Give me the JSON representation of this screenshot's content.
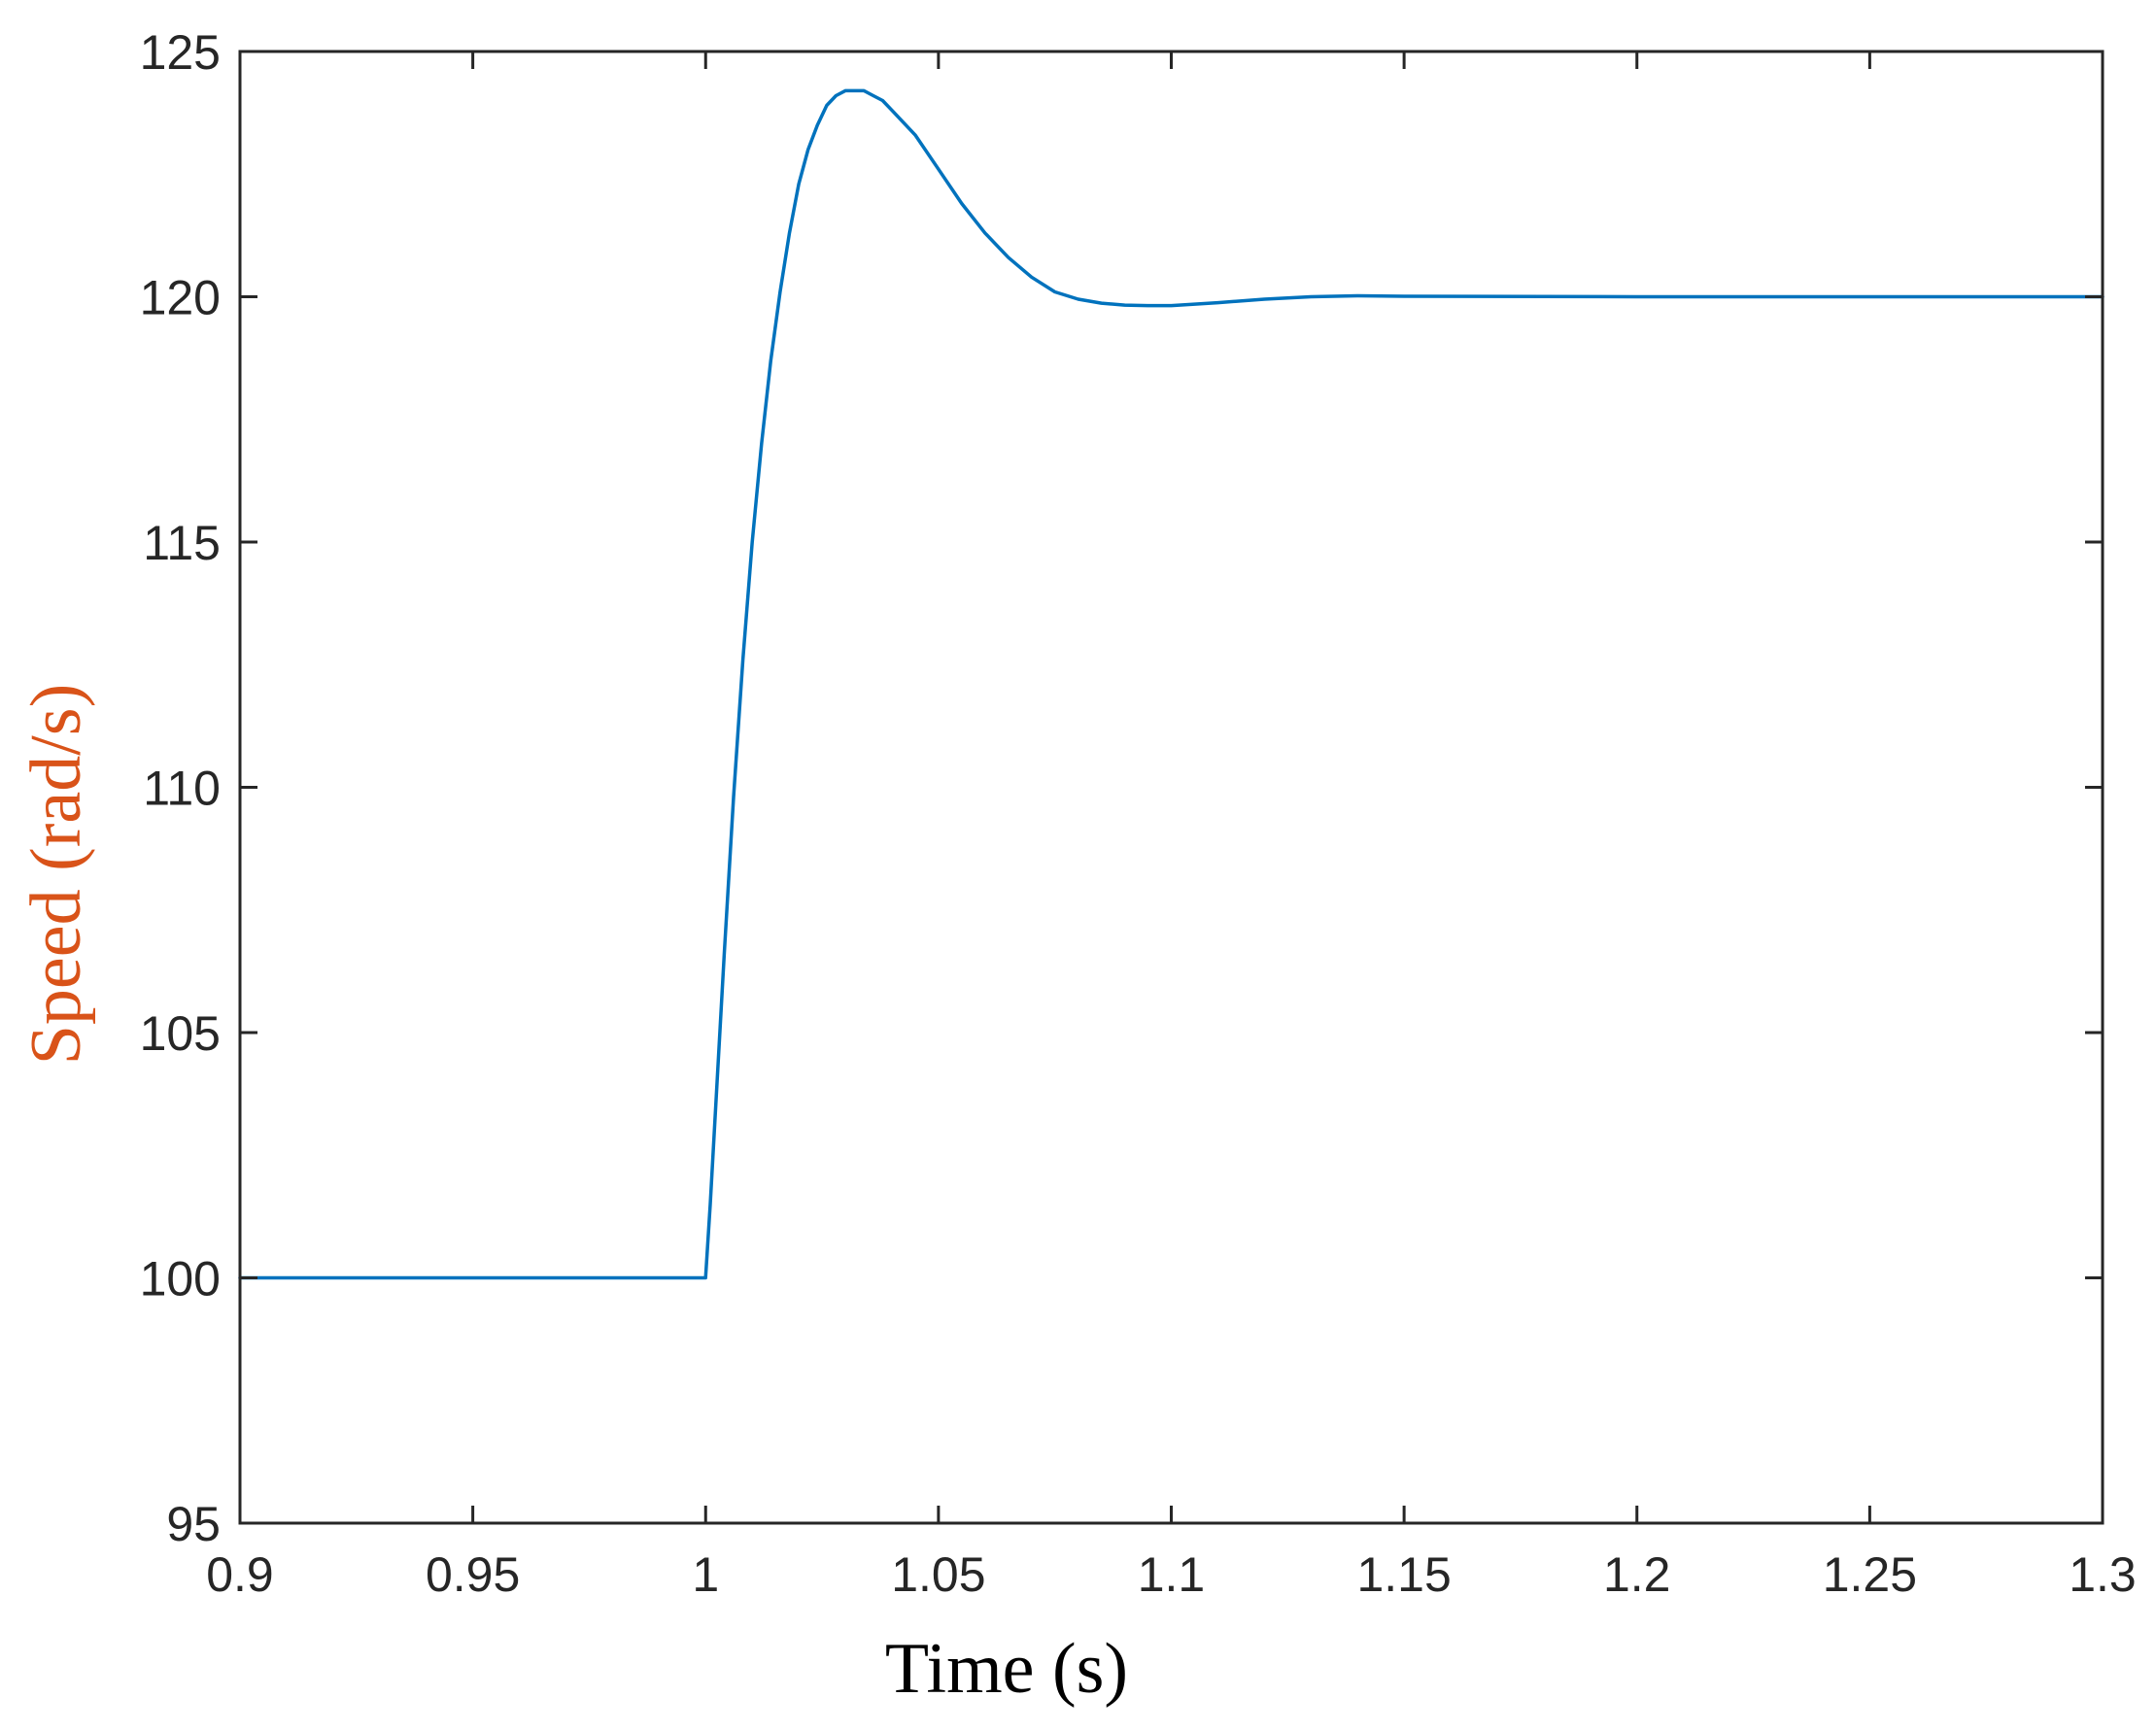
{
  "chart_data": {
    "type": "line",
    "title": "",
    "xlabel": "Time (s)",
    "ylabel": "Speed (rad/s)",
    "xlim": [
      0.9,
      1.3
    ],
    "ylim": [
      95,
      125
    ],
    "xticks": [
      0.9,
      0.95,
      1,
      1.05,
      1.1,
      1.15,
      1.2,
      1.25,
      1.3
    ],
    "xtick_labels": [
      "0.9",
      "0.95",
      "1",
      "1.05",
      "1.1",
      "1.15",
      "1.2",
      "1.25",
      "1.3"
    ],
    "yticks": [
      95,
      100,
      105,
      110,
      115,
      120,
      125
    ],
    "ytick_labels": [
      "95",
      "100",
      "105",
      "110",
      "115",
      "120",
      "125"
    ],
    "grid": false,
    "legend": "none",
    "colors": {
      "line": "#0072BD",
      "axis": "#262626",
      "ylabel": "#D95319",
      "xlabel": "#000000"
    },
    "series": [
      {
        "x": [
          0.9,
          0.95,
          1.0,
          1.001,
          1.002,
          1.004,
          1.006,
          1.008,
          1.01,
          1.012,
          1.014,
          1.016,
          1.018,
          1.02,
          1.022,
          1.024,
          1.026,
          1.028,
          1.03,
          1.032,
          1.034,
          1.036,
          1.038,
          1.04,
          1.045,
          1.05,
          1.055,
          1.06,
          1.065,
          1.07,
          1.075,
          1.08,
          1.085,
          1.09,
          1.095,
          1.1,
          1.105,
          1.11,
          1.12,
          1.13,
          1.14,
          1.15,
          1.2,
          1.25,
          1.3
        ],
        "y": [
          100,
          100,
          100,
          101.5,
          103.2,
          106.6,
          109.8,
          112.6,
          115.0,
          117.0,
          118.7,
          120.1,
          121.3,
          122.3,
          123.0,
          123.5,
          123.9,
          124.1,
          124.2,
          124.2,
          124.2,
          124.1,
          124.0,
          123.8,
          123.3,
          122.6,
          121.9,
          121.3,
          120.8,
          120.4,
          120.1,
          119.95,
          119.87,
          119.83,
          119.82,
          119.82,
          119.85,
          119.88,
          119.95,
          120.0,
          120.02,
          120.01,
          120,
          120,
          120
        ]
      }
    ]
  }
}
